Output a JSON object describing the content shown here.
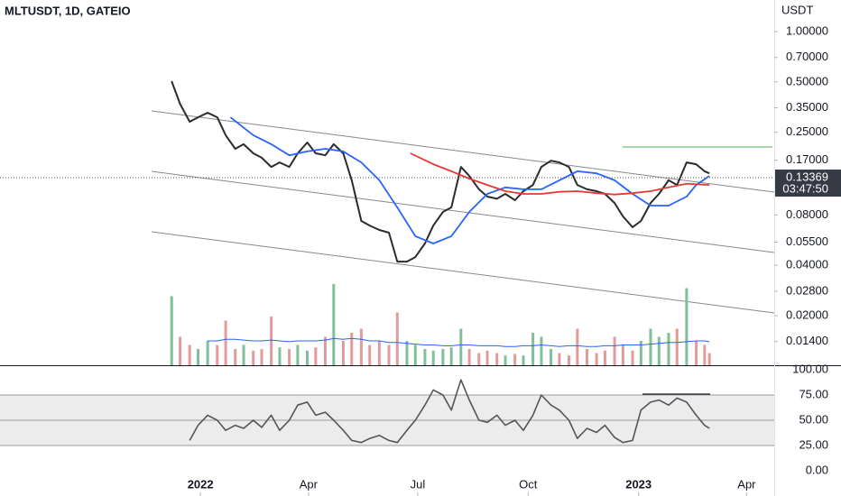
{
  "chart_data": {
    "type": "line",
    "title": "MLTUSDT, 1D, GATEIO",
    "y_label": "USDT",
    "log": true,
    "xlim": [
      -167,
      478
    ],
    "xticks": [
      {
        "value": 0,
        "label": "2022"
      },
      {
        "value": 90,
        "label": "Apr"
      },
      {
        "value": 181,
        "label": "Jul"
      },
      {
        "value": 273,
        "label": "Oct"
      },
      {
        "value": 365,
        "label": "2023"
      },
      {
        "value": 455,
        "label": "Apr"
      }
    ],
    "ylim": [
      0.0101,
      1.545
    ],
    "yticks": [
      {
        "value": 1,
        "label": "1.00000"
      },
      {
        "value": 0.7,
        "label": "0.70000"
      },
      {
        "value": 0.5,
        "label": "0.50000"
      },
      {
        "value": 0.35,
        "label": "0.35000"
      },
      {
        "value": 0.25,
        "label": "0.25000"
      },
      {
        "value": 0.17,
        "label": "0.17000"
      },
      {
        "value": 0.08,
        "label": "0.08000"
      },
      {
        "value": 0.055,
        "label": "0.05500"
      },
      {
        "value": 0.04,
        "label": "0.04000"
      },
      {
        "value": 0.028,
        "label": "0.02800"
      },
      {
        "value": 0.02,
        "label": "0.02000"
      },
      {
        "value": 0.014,
        "label": "0.01400"
      }
    ],
    "last_price": 0.13369,
    "countdown": "03:47:50",
    "x": [
      -24,
      -17,
      -9,
      -2,
      6,
      14,
      21,
      29,
      36,
      44,
      51,
      59,
      66,
      74,
      81,
      89,
      96,
      104,
      111,
      119,
      126,
      134,
      141,
      149,
      157,
      164,
      172,
      179,
      187,
      194,
      202,
      209,
      217,
      224,
      232,
      239,
      247,
      254,
      262,
      269,
      277,
      284,
      292,
      299,
      307,
      314,
      322,
      330,
      337,
      345,
      352,
      360,
      367,
      375,
      382,
      390,
      397,
      405,
      413,
      420,
      424
    ],
    "series": [
      {
        "color": "#2b2b2b",
        "values": [
          0.505,
          0.37,
          0.289,
          0.307,
          0.327,
          0.307,
          0.24,
          0.199,
          0.212,
          0.187,
          0.176,
          0.155,
          0.165,
          0.155,
          0.187,
          0.217,
          0.187,
          0.182,
          0.212,
          0.187,
          0.129,
          0.0737,
          0.0692,
          0.0651,
          0.0627,
          0.0421,
          0.0421,
          0.0448,
          0.054,
          0.0692,
          0.0834,
          0.0888,
          0.155,
          0.137,
          0.114,
          0.103,
          0.1,
          0.107,
          0.098,
          0.111,
          0.121,
          0.155,
          0.169,
          0.165,
          0.155,
          0.121,
          0.114,
          0.111,
          0.107,
          0.0944,
          0.0784,
          0.0676,
          0.0737,
          0.0944,
          0.107,
          0.129,
          0.121,
          0.165,
          0.161,
          0.146,
          0.142
        ]
      },
      {
        "color": "#2962ff",
        "x": [
          25,
          44,
          59,
          74,
          89,
          104,
          119,
          134,
          149,
          164,
          179,
          194,
          209,
          224,
          239,
          254,
          269,
          284,
          299,
          314,
          330,
          345,
          360,
          375,
          390,
          405,
          413,
          424
        ],
        "values": [
          0.307,
          0.24,
          0.212,
          0.182,
          0.192,
          0.199,
          0.192,
          0.165,
          0.129,
          0.0888,
          0.0597,
          0.054,
          0.0597,
          0.0834,
          0.107,
          0.117,
          0.114,
          0.114,
          0.129,
          0.146,
          0.142,
          0.129,
          0.107,
          0.091,
          0.091,
          0.103,
          0.121,
          0.137
        ]
      },
      {
        "color": "#e53935",
        "x": [
          175,
          194,
          209,
          224,
          239,
          254,
          269,
          284,
          299,
          314,
          330,
          345,
          360,
          375,
          390,
          405,
          424
        ],
        "values": [
          0.187,
          0.161,
          0.146,
          0.132,
          0.121,
          0.111,
          0.107,
          0.107,
          0.11,
          0.111,
          0.108,
          0.106,
          0.108,
          0.111,
          0.117,
          0.123,
          0.121
        ]
      }
    ],
    "volume": {
      "ylim": [
        0,
        100
      ],
      "up_color": "#7fbf9a",
      "down_color": "#e59a9a",
      "values": [
        85,
        35,
        25,
        20,
        30,
        25,
        55,
        20,
        25,
        18,
        20,
        60,
        22,
        20,
        25,
        18,
        22,
        35,
        100,
        30,
        40,
        45,
        25,
        30,
        25,
        65,
        30,
        25,
        20,
        18,
        20,
        22,
        45,
        20,
        15,
        18,
        15,
        12,
        14,
        12,
        40,
        35,
        20,
        15,
        12,
        45,
        20,
        15,
        18,
        35,
        25,
        18,
        30,
        45,
        35,
        40,
        45,
        95,
        30,
        25,
        15
      ],
      "ma_color": "#2962ff",
      "ma": [
        null,
        null,
        null,
        null,
        30,
        30,
        32,
        32,
        31,
        30,
        30,
        31,
        30,
        29,
        30,
        30,
        30,
        31,
        33,
        32,
        33,
        32,
        30,
        30,
        28,
        28,
        27,
        26,
        25,
        25,
        24,
        24,
        25,
        25,
        24,
        24,
        24,
        23,
        23,
        24,
        24,
        25,
        24,
        23,
        24,
        24,
        23,
        23,
        24,
        24,
        25,
        25,
        25,
        26,
        27,
        28,
        28,
        29,
        30,
        30,
        29
      ]
    },
    "rsi": {
      "ylim": [
        -25,
        103.6
      ],
      "yticks": [
        {
          "value": 100,
          "label": "100.00"
        },
        {
          "value": 75,
          "label": "75.00"
        },
        {
          "value": 50,
          "label": "50.00"
        },
        {
          "value": 25,
          "label": "25.00"
        },
        {
          "value": 0,
          "label": "0.00"
        }
      ],
      "band": [
        25,
        75
      ],
      "color": "#555555",
      "values": [
        null,
        null,
        30,
        45,
        55,
        50,
        40,
        45,
        42,
        50,
        43,
        55,
        40,
        50,
        65,
        68,
        55,
        58,
        50,
        40,
        30,
        28,
        32,
        35,
        30,
        28,
        40,
        50,
        65,
        80,
        75,
        60,
        90,
        70,
        50,
        48,
        55,
        45,
        50,
        40,
        55,
        75,
        65,
        60,
        50,
        32,
        42,
        38,
        45,
        33,
        28,
        30,
        60,
        68,
        70,
        65,
        72,
        68,
        55,
        45,
        42
      ]
    }
  }
}
